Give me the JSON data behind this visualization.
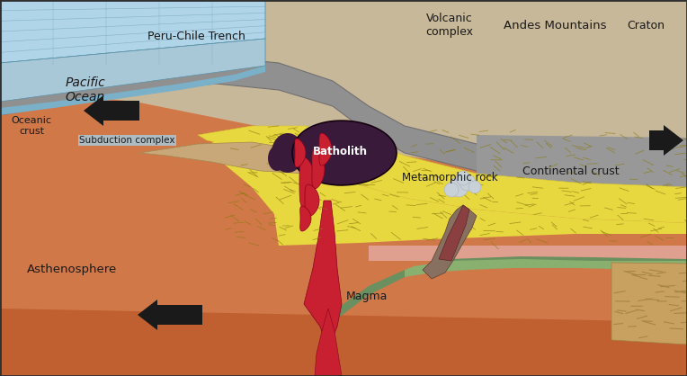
{
  "bg_color": "#c8b89a",
  "labels": {
    "peru_chile_trench": "Peru-Chile Trench",
    "pacific_ocean": "Pacific\nOcean",
    "subduction_complex": "Subduction complex",
    "oceanic_crust": "Oceanic\ncrust",
    "asthenosphere": "Asthenosphere",
    "magma": "Magma",
    "batholith": "Batholith",
    "metamorphic_rock": "Metamorphic rock",
    "continental_crust": "Continental crust",
    "volcanic_complex": "Volcanic\ncomplex",
    "andes_mountains": "Andes Mountains",
    "craton": "Craton"
  },
  "colors": {
    "ocean_blue": "#a8c8d8",
    "ocean_blue2": "#7ab0c8",
    "ocean_dark": "#5890a8",
    "ocean_top": "#b0d4e8",
    "subduction_tan": "#c8a878",
    "yellow_crust": "#e8d840",
    "yellow_crust2": "#d4c030",
    "gray_oceanic": "#909090",
    "gray_dark": "#707070",
    "gray_mantle": "#989898",
    "orange_asthenosphere": "#d07848",
    "orange_dark": "#c06030",
    "red_magma": "#c82030",
    "dark_magma": "#8b0020",
    "batholith_dark": "#3a1a3a",
    "green_mountain": "#6a9060",
    "green_light": "#8ab070",
    "pink_layer": "#e0a090",
    "brown_volcanic": "#8a4040",
    "craton_tan": "#c8a060",
    "arrow_color": "#1a1a1a",
    "text_color": "#1a1a1a",
    "hatch_color": "#8a7a10",
    "smoke_color": "#c8d0d8"
  }
}
